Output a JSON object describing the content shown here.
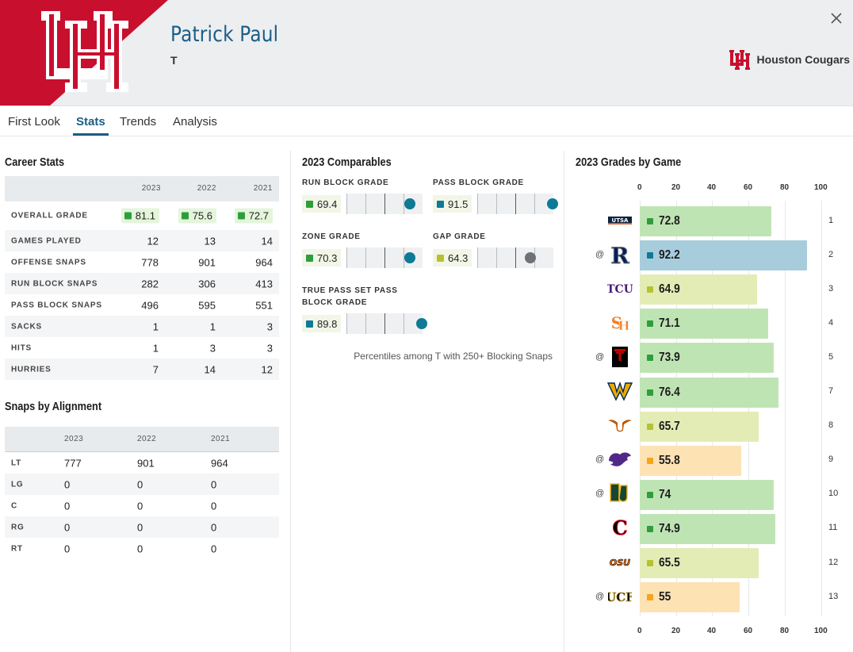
{
  "colors": {
    "brand_red": "#c8102e",
    "accent_blue": "#1a5e86",
    "grade_high": "#2e9e3c",
    "grade_elite": "#0f7a96",
    "grade_avg": "#b7c22f",
    "grade_low": "#f7a41d",
    "bar_high": "#bfe4b4",
    "bar_elite": "#a7cddd",
    "bar_avg": "#e4ecb6",
    "bar_low": "#fde2b4"
  },
  "header": {
    "player_name": "Patrick Paul",
    "position": "T",
    "team_name": "Houston Cougars",
    "close_icon": "close-icon"
  },
  "tabs": [
    {
      "label": "First Look",
      "active": false
    },
    {
      "label": "Stats",
      "active": true
    },
    {
      "label": "Trends",
      "active": false
    },
    {
      "label": "Analysis",
      "active": false
    }
  ],
  "career_stats": {
    "title": "Career Stats",
    "years": [
      "2023",
      "2022",
      "2021"
    ],
    "overall": {
      "label": "OVERALL GRADE",
      "values": [
        "81.1",
        "75.6",
        "72.7"
      ]
    },
    "rows": [
      {
        "label": "GAMES PLAYED",
        "values": [
          "12",
          "13",
          "14"
        ]
      },
      {
        "label": "OFFENSE SNAPS",
        "values": [
          "778",
          "901",
          "964"
        ]
      },
      {
        "label": "RUN BLOCK SNAPS",
        "values": [
          "282",
          "306",
          "413"
        ]
      },
      {
        "label": "PASS BLOCK SNAPS",
        "values": [
          "496",
          "595",
          "551"
        ]
      },
      {
        "label": "SACKS",
        "values": [
          "1",
          "1",
          "3"
        ]
      },
      {
        "label": "HITS",
        "values": [
          "1",
          "3",
          "3"
        ]
      },
      {
        "label": "HURRIES",
        "values": [
          "7",
          "14",
          "12"
        ]
      }
    ]
  },
  "snaps_by_alignment": {
    "title": "Snaps by Alignment",
    "years": [
      "2023",
      "2022",
      "2021"
    ],
    "rows": [
      {
        "label": "LT",
        "values": [
          "777",
          "901",
          "964"
        ]
      },
      {
        "label": "LG",
        "values": [
          "0",
          "0",
          "0"
        ]
      },
      {
        "label": "C",
        "values": [
          "0",
          "0",
          "0"
        ]
      },
      {
        "label": "RG",
        "values": [
          "0",
          "0",
          "0"
        ]
      },
      {
        "label": "RT",
        "values": [
          "0",
          "0",
          "0"
        ]
      }
    ]
  },
  "comparables": {
    "title": "2023 Comparables",
    "items": [
      {
        "label": "RUN BLOCK GRADE",
        "value": "69.4",
        "percentile": 83,
        "tier": "high"
      },
      {
        "label": "PASS BLOCK GRADE",
        "value": "91.5",
        "percentile": 99,
        "tier": "elite"
      },
      {
        "label": "ZONE GRADE",
        "value": "70.3",
        "percentile": 83,
        "tier": "high"
      },
      {
        "label": "GAP GRADE",
        "value": "64.3",
        "percentile": 70,
        "tier": "avg"
      },
      {
        "label": "TRUE PASS SET PASS BLOCK GRADE",
        "value": "89.8",
        "percentile": 99,
        "tier": "elite"
      }
    ],
    "note": "Percentiles among T with 250+ Blocking Snaps"
  },
  "grades_by_game": {
    "title": "2023 Grades by Game",
    "axis_ticks": [
      "0",
      "20",
      "40",
      "60",
      "80",
      "100"
    ],
    "games": [
      {
        "week": "1",
        "away": false,
        "opponent_icon": "utsa-logo-icon",
        "grade": 72.8,
        "label": "72.8",
        "tier": "high"
      },
      {
        "week": "2",
        "away": true,
        "opponent_icon": "rice-logo-icon",
        "grade": 92.2,
        "label": "92.2",
        "tier": "elite"
      },
      {
        "week": "3",
        "away": false,
        "opponent_icon": "tcu-logo-icon",
        "grade": 64.9,
        "label": "64.9",
        "tier": "avg"
      },
      {
        "week": "4",
        "away": false,
        "opponent_icon": "sam-houston-logo-icon",
        "grade": 71.1,
        "label": "71.1",
        "tier": "high"
      },
      {
        "week": "5",
        "away": true,
        "opponent_icon": "texas-tech-logo-icon",
        "grade": 73.9,
        "label": "73.9",
        "tier": "high"
      },
      {
        "week": "7",
        "away": false,
        "opponent_icon": "west-virginia-logo-icon",
        "grade": 76.4,
        "label": "76.4",
        "tier": "high"
      },
      {
        "week": "8",
        "away": false,
        "opponent_icon": "texas-logo-icon",
        "grade": 65.7,
        "label": "65.7",
        "tier": "avg"
      },
      {
        "week": "9",
        "away": true,
        "opponent_icon": "kansas-state-logo-icon",
        "grade": 55.8,
        "label": "55.8",
        "tier": "low"
      },
      {
        "week": "10",
        "away": true,
        "opponent_icon": "baylor-logo-icon",
        "grade": 74,
        "label": "74",
        "tier": "high"
      },
      {
        "week": "11",
        "away": false,
        "opponent_icon": "cincinnati-logo-icon",
        "grade": 74.9,
        "label": "74.9",
        "tier": "high"
      },
      {
        "week": "12",
        "away": false,
        "opponent_icon": "oklahoma-state-logo-icon",
        "grade": 65.5,
        "label": "65.5",
        "tier": "avg"
      },
      {
        "week": "13",
        "away": true,
        "opponent_icon": "ucf-logo-icon",
        "grade": 55,
        "label": "55",
        "tier": "low"
      }
    ],
    "away_marker": "@"
  }
}
